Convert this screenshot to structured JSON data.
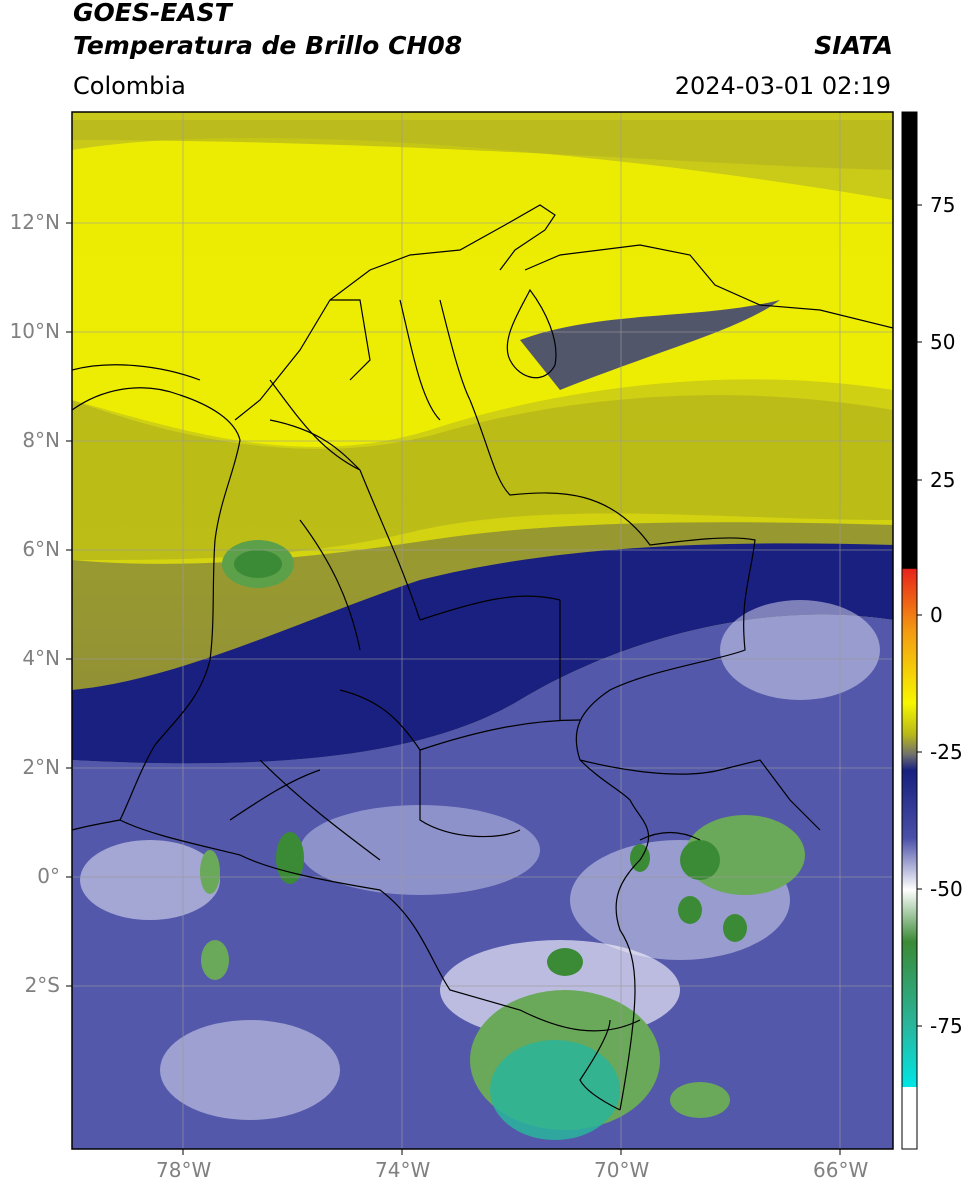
{
  "header": {
    "title_line1": "GOES-EAST",
    "title_line2": "Temperatura de Brillo CH08",
    "region": "Colombia",
    "organization": "SIATA",
    "timestamp": "2024-03-01 02:19"
  },
  "map": {
    "lat_ticks": [
      "12°N",
      "10°N",
      "8°N",
      "6°N",
      "4°N",
      "2°N",
      "0°",
      "2°S"
    ],
    "lon_ticks": [
      "78°W",
      "74°W",
      "70°W",
      "66°W"
    ]
  },
  "colorbar": {
    "ticks": [
      "75",
      "50",
      "25",
      "0",
      "-25",
      "-50",
      "-75"
    ],
    "colors": {
      "black": "#000000",
      "red": "#e8241a",
      "orange": "#f39a12",
      "yellow": "#f7f700",
      "olive": "#b9b919",
      "gray": "#6e6e6e",
      "navy": "#17207f",
      "blue": "#4a50a8",
      "white": "#ffffff",
      "green": "#3b8b36",
      "teal": "#2ab59b",
      "cyan": "#00e6e6"
    }
  }
}
